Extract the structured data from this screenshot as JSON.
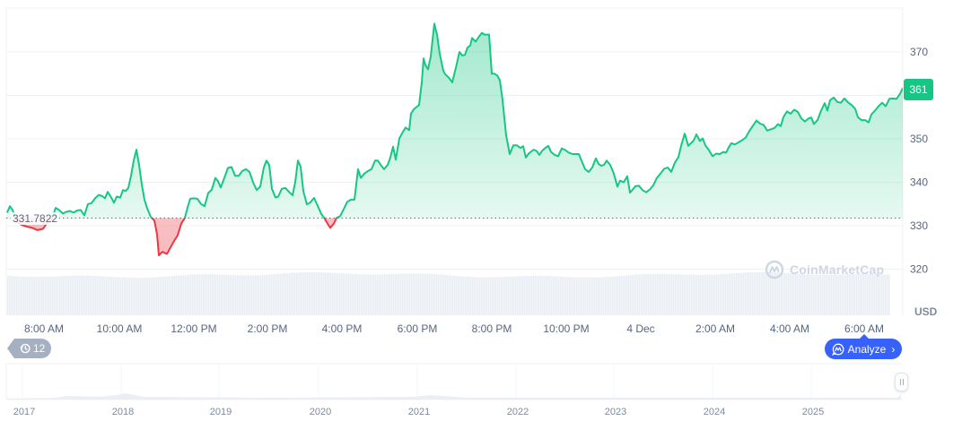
{
  "chart_data": {
    "type": "area",
    "title": "",
    "xlabel": "",
    "ylabel": "USD",
    "currency": "USD",
    "ylim": [
      312,
      378
    ],
    "y_ticks": [
      320,
      330,
      340,
      350,
      360,
      370
    ],
    "x_ticks": [
      "8:00 AM",
      "10:00 AM",
      "12:00 PM",
      "2:00 PM",
      "4:00 PM",
      "6:00 PM",
      "8:00 PM",
      "10:00 PM",
      "4 Dec",
      "2:00 AM",
      "4:00 AM",
      "6:00 AM"
    ],
    "baseline": 331.7822,
    "baseline_label": "331.7822",
    "current_price": 361,
    "current_price_label": "361",
    "grid": true,
    "colors": {
      "up_line": "#16c784",
      "down_line": "#ea3943",
      "up_fill": "#16c784",
      "down_fill": "#ea3943",
      "volume": "#eaeef3",
      "grid": "#eff2f5"
    },
    "series": [
      {
        "name": "Price",
        "points": [
          [
            8,
            333.0
          ],
          [
            11,
            334.5
          ],
          [
            14,
            333.6
          ],
          [
            18,
            331.0
          ],
          [
            24,
            330.2
          ],
          [
            30,
            329.8
          ],
          [
            36,
            329.5
          ],
          [
            42,
            329.0
          ],
          [
            48,
            329.3
          ],
          [
            52,
            330.5
          ],
          [
            58,
            331.7
          ],
          [
            62,
            334.1
          ],
          [
            66,
            333.6
          ],
          [
            70,
            332.8
          ],
          [
            74,
            333.2
          ],
          [
            78,
            333.4
          ],
          [
            82,
            333.0
          ],
          [
            86,
            333.5
          ],
          [
            90,
            333.6
          ],
          [
            94,
            332.4
          ],
          [
            98,
            335.0
          ],
          [
            102,
            335.2
          ],
          [
            106,
            336.3
          ],
          [
            110,
            337.1
          ],
          [
            114,
            336.8
          ],
          [
            117,
            336.3
          ],
          [
            120,
            337.8
          ],
          [
            124,
            336.5
          ],
          [
            127,
            335.3
          ],
          [
            130,
            336.7
          ],
          [
            134,
            336.5
          ],
          [
            137,
            338.2
          ],
          [
            140,
            338.0
          ],
          [
            143,
            338.7
          ],
          [
            146,
            341.5
          ],
          [
            149,
            345.0
          ],
          [
            152,
            347.5
          ],
          [
            155,
            344.0
          ],
          [
            158,
            339.5
          ],
          [
            161,
            336.0
          ],
          [
            164,
            334.0
          ],
          [
            168,
            332.0
          ],
          [
            172,
            331.2
          ],
          [
            175,
            328.0
          ],
          [
            177,
            323.2
          ],
          [
            181,
            324.0
          ],
          [
            186,
            323.5
          ],
          [
            190,
            325.0
          ],
          [
            194,
            326.5
          ],
          [
            198,
            327.8
          ],
          [
            202,
            330.5
          ],
          [
            206,
            331.8
          ],
          [
            209,
            334.2
          ],
          [
            212,
            336.2
          ],
          [
            216,
            336.3
          ],
          [
            220,
            336.2
          ],
          [
            224,
            335.0
          ],
          [
            228,
            334.5
          ],
          [
            232,
            337.5
          ],
          [
            236,
            338.3
          ],
          [
            240,
            341.0
          ],
          [
            243,
            340.2
          ],
          [
            246,
            338.8
          ],
          [
            250,
            341.0
          ],
          [
            254,
            343.3
          ],
          [
            258,
            343.5
          ],
          [
            262,
            341.5
          ],
          [
            266,
            341.5
          ],
          [
            270,
            342.6
          ],
          [
            274,
            343.0
          ],
          [
            278,
            342.4
          ],
          [
            282,
            340.0
          ],
          [
            286,
            338.2
          ],
          [
            290,
            339.0
          ],
          [
            294,
            343.4
          ],
          [
            297,
            345.0
          ],
          [
            300,
            344.0
          ],
          [
            303,
            338.5
          ],
          [
            307,
            336.5
          ],
          [
            310,
            336.7
          ],
          [
            314,
            338.5
          ],
          [
            318,
            338.7
          ],
          [
            322,
            337.8
          ],
          [
            326,
            337.0
          ],
          [
            329,
            340.0
          ],
          [
            332,
            345.0
          ],
          [
            335,
            343.6
          ],
          [
            338,
            338.0
          ],
          [
            342,
            334.9
          ],
          [
            346,
            335.4
          ],
          [
            350,
            336.4
          ],
          [
            354,
            334.6
          ],
          [
            358,
            332.7
          ],
          [
            361,
            331.9
          ],
          [
            365,
            330.5
          ],
          [
            368,
            329.5
          ],
          [
            372,
            330.5
          ],
          [
            375,
            331.8
          ],
          [
            379,
            332.2
          ],
          [
            383,
            333.8
          ],
          [
            387,
            335.5
          ],
          [
            391,
            336.0
          ],
          [
            395,
            336.0
          ],
          [
            399,
            343.0
          ],
          [
            402,
            341.0
          ],
          [
            406,
            342.0
          ],
          [
            410,
            342.6
          ],
          [
            414,
            343.0
          ],
          [
            418,
            345.0
          ],
          [
            421,
            345.0
          ],
          [
            425,
            343.8
          ],
          [
            428,
            343.0
          ],
          [
            432,
            344.0
          ],
          [
            435,
            345.7
          ],
          [
            438,
            348.2
          ],
          [
            441,
            345.2
          ],
          [
            445,
            350.1
          ],
          [
            449,
            351.6
          ],
          [
            452,
            352.6
          ],
          [
            456,
            352.0
          ],
          [
            458,
            355.8
          ],
          [
            461,
            356.8
          ],
          [
            464,
            357.3
          ],
          [
            467,
            357.8
          ],
          [
            470,
            363.0
          ],
          [
            472,
            368.5
          ],
          [
            474,
            367.0
          ],
          [
            477,
            366.0
          ],
          [
            480,
            369.0
          ],
          [
            484,
            376.5
          ],
          [
            487,
            374.0
          ],
          [
            490,
            369.6
          ],
          [
            494,
            365.7
          ],
          [
            496,
            364.9
          ],
          [
            500,
            364.1
          ],
          [
            504,
            363.0
          ],
          [
            508,
            366.4
          ],
          [
            512,
            370.0
          ],
          [
            515,
            369.2
          ],
          [
            518,
            369.3
          ],
          [
            521,
            371.0
          ],
          [
            524,
            371.5
          ],
          [
            526,
            373.2
          ],
          [
            530,
            372.4
          ],
          [
            534,
            373.6
          ],
          [
            537,
            374.4
          ],
          [
            540,
            374.0
          ],
          [
            545,
            374.0
          ],
          [
            548,
            365.0
          ],
          [
            551,
            365.0
          ],
          [
            554,
            364.6
          ],
          [
            557,
            363.5
          ],
          [
            560,
            359.0
          ],
          [
            564,
            350.8
          ],
          [
            568,
            346.5
          ],
          [
            572,
            348.5
          ],
          [
            576,
            348.5
          ],
          [
            580,
            347.9
          ],
          [
            583,
            348.3
          ],
          [
            586,
            345.7
          ],
          [
            589,
            346.6
          ],
          [
            592,
            347.1
          ],
          [
            595,
            347.5
          ],
          [
            598,
            347.2
          ],
          [
            601,
            346.3
          ],
          [
            604,
            347.2
          ],
          [
            607,
            347.8
          ],
          [
            611,
            348.4
          ],
          [
            614,
            347.0
          ],
          [
            618,
            346.3
          ],
          [
            622,
            346.0
          ],
          [
            626,
            347.8
          ],
          [
            630,
            347.4
          ],
          [
            634,
            346.8
          ],
          [
            638,
            346.5
          ],
          [
            642,
            346.5
          ],
          [
            645,
            346.5
          ],
          [
            648,
            345.0
          ],
          [
            652,
            343.0
          ],
          [
            656,
            342.4
          ],
          [
            660,
            343.4
          ],
          [
            664,
            345.5
          ],
          [
            667,
            344.2
          ],
          [
            670,
            343.8
          ],
          [
            673,
            344.0
          ],
          [
            676,
            345.0
          ],
          [
            680,
            344.0
          ],
          [
            684,
            342.0
          ],
          [
            688,
            339.0
          ],
          [
            691,
            340.4
          ],
          [
            695,
            340.0
          ],
          [
            699,
            341.4
          ],
          [
            702,
            337.6
          ],
          [
            705,
            338.3
          ],
          [
            708,
            339.1
          ],
          [
            712,
            339.2
          ],
          [
            716,
            338.2
          ],
          [
            720,
            337.7
          ],
          [
            724,
            338.3
          ],
          [
            728,
            339.3
          ],
          [
            732,
            341.0
          ],
          [
            736,
            342.0
          ],
          [
            740,
            343.1
          ],
          [
            744,
            343.4
          ],
          [
            748,
            342.4
          ],
          [
            752,
            344.5
          ],
          [
            756,
            345.8
          ],
          [
            759,
            348.4
          ],
          [
            763,
            351.2
          ],
          [
            767,
            348.4
          ],
          [
            770,
            349.0
          ],
          [
            773,
            349.6
          ],
          [
            776,
            351.0
          ],
          [
            780,
            349.5
          ],
          [
            783,
            350.1
          ],
          [
            786,
            348.5
          ],
          [
            790,
            347.4
          ],
          [
            794,
            346.0
          ],
          [
            798,
            346.6
          ],
          [
            802,
            346.5
          ],
          [
            806,
            347.0
          ],
          [
            809,
            346.8
          ],
          [
            812,
            348.0
          ],
          [
            815,
            349.0
          ],
          [
            819,
            348.7
          ],
          [
            823,
            349.2
          ],
          [
            827,
            349.7
          ],
          [
            831,
            350.3
          ],
          [
            835,
            351.8
          ],
          [
            839,
            353.0
          ],
          [
            843,
            354.2
          ],
          [
            847,
            353.5
          ],
          [
            851,
            353.2
          ],
          [
            855,
            351.9
          ],
          [
            859,
            352.2
          ],
          [
            863,
            352.5
          ],
          [
            867,
            353.4
          ],
          [
            870,
            352.9
          ],
          [
            873,
            355.0
          ],
          [
            877,
            356.3
          ],
          [
            881,
            355.8
          ],
          [
            885,
            356.7
          ],
          [
            889,
            356.2
          ],
          [
            893,
            354.7
          ],
          [
            897,
            354.0
          ],
          [
            901,
            354.7
          ],
          [
            904,
            354.9
          ],
          [
            907,
            353.4
          ],
          [
            911,
            354.3
          ],
          [
            915,
            356.5
          ],
          [
            919,
            358.2
          ],
          [
            922,
            356.5
          ],
          [
            925,
            358.9
          ],
          [
            929,
            359.5
          ],
          [
            933,
            358.5
          ],
          [
            937,
            358.3
          ],
          [
            941,
            359.3
          ],
          [
            945,
            358.4
          ],
          [
            949,
            357.8
          ],
          [
            953,
            356.9
          ],
          [
            956,
            355.0
          ],
          [
            960,
            354.3
          ],
          [
            964,
            354.3
          ],
          [
            968,
            353.8
          ],
          [
            971,
            355.6
          ],
          [
            975,
            356.5
          ],
          [
            979,
            357.5
          ],
          [
            983,
            358.3
          ],
          [
            987,
            357.5
          ],
          [
            991,
            359.2
          ],
          [
            995,
            359.3
          ],
          [
            999,
            359.2
          ],
          [
            1003,
            360.4
          ],
          [
            1006,
            361.7
          ]
        ]
      }
    ],
    "volume_note": "light gray volume bars along bottom of main chart",
    "navigator": {
      "years": [
        "2017",
        "2018",
        "2019",
        "2020",
        "2021",
        "2022",
        "2023",
        "2024",
        "2025"
      ]
    }
  },
  "ui": {
    "history_badge": "12",
    "analyze_button": "Analyze",
    "watermark": "CoinMarketCap",
    "usd_label": "USD"
  },
  "icons": {
    "history": "clock-history-icon",
    "analyze": "analyze-chat-icon",
    "chevron": "chevron-right-icon",
    "logo": "coinmarketcap-logo-icon"
  }
}
